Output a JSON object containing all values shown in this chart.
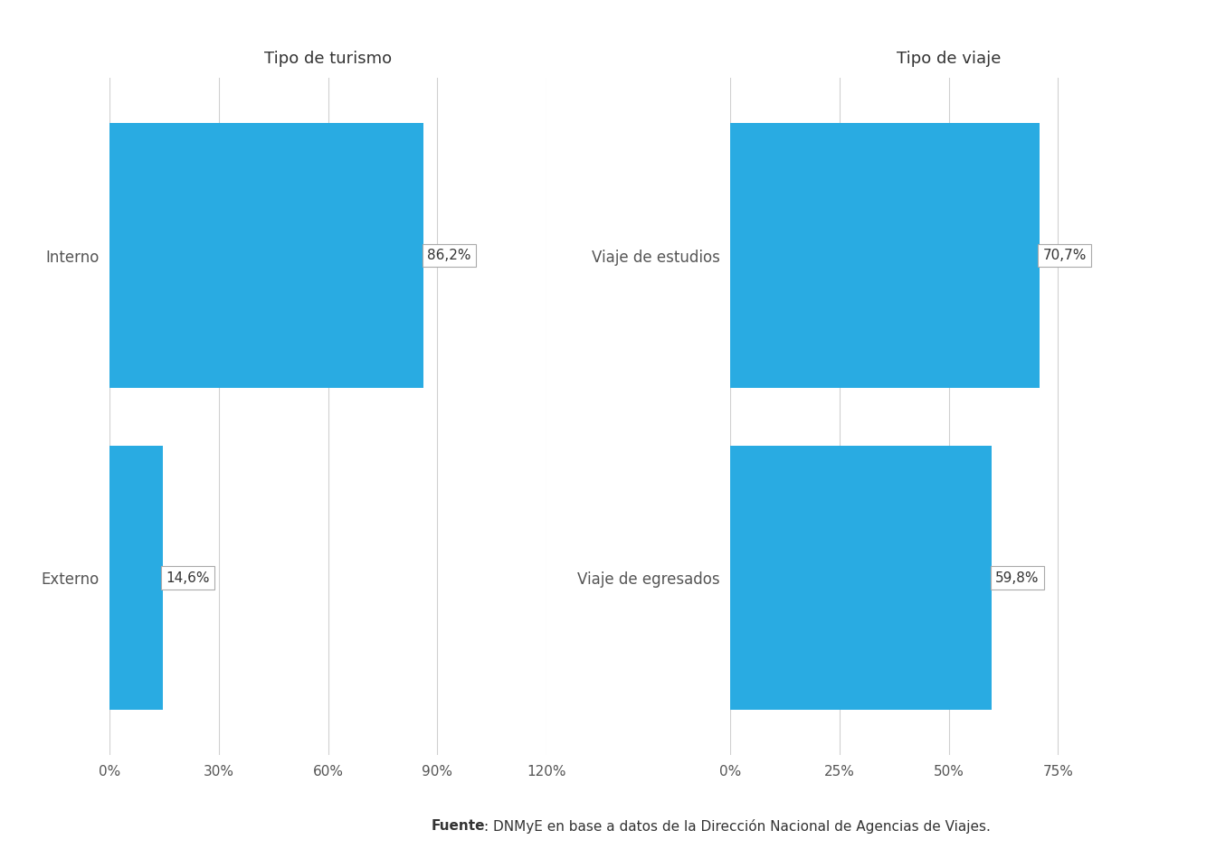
{
  "left_chart": {
    "title": "Tipo de turismo",
    "categories": [
      "Interno",
      "Externo"
    ],
    "values": [
      86.2,
      14.6
    ],
    "labels": [
      "86,2%",
      "14,6%"
    ],
    "xlim": [
      0,
      120
    ],
    "xticks": [
      0,
      30,
      60,
      90,
      120
    ],
    "xtick_labels": [
      "0%",
      "30%",
      "60%",
      "90%",
      "120%"
    ]
  },
  "right_chart": {
    "title": "Tipo de viaje",
    "categories": [
      "Viaje de estudios",
      "Viaje de egresados"
    ],
    "values": [
      70.7,
      59.8
    ],
    "labels": [
      "70,7%",
      "59,8%"
    ],
    "xlim": [
      0,
      100
    ],
    "xticks": [
      0,
      25,
      50,
      75
    ],
    "xtick_labels": [
      "0%",
      "25%",
      "50%",
      "75%"
    ]
  },
  "bar_color": "#29ABE2",
  "bar_height": 0.82,
  "title_fontsize": 13,
  "label_fontsize": 11,
  "tick_fontsize": 11,
  "ytick_fontsize": 12,
  "source_bold": "Fuente",
  "source_normal": ": DNMyE en base a datos de la Dirección Nacional de Agencias de Viajes.",
  "background_color": "#ffffff",
  "grid_color": "#d0d0d0",
  "text_color": "#555555",
  "label_color": "#333333"
}
